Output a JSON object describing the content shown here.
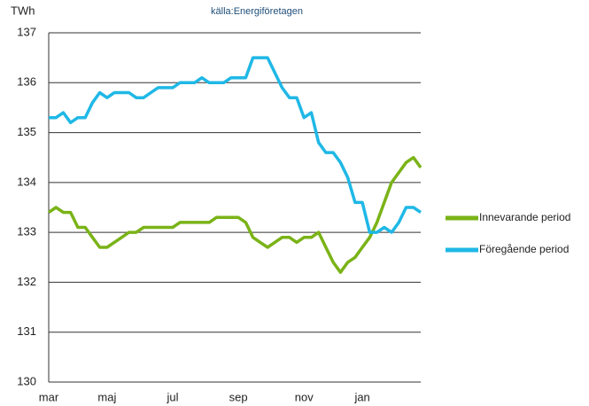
{
  "chart_data": {
    "type": "line",
    "title": "källa:Energiföretagen",
    "y_label": "TWh",
    "categories": [
      "mar",
      null,
      null,
      null,
      null,
      null,
      null,
      null,
      "maj",
      null,
      null,
      null,
      null,
      null,
      null,
      null,
      null,
      "jul",
      null,
      null,
      null,
      null,
      null,
      null,
      null,
      null,
      "sep",
      null,
      null,
      null,
      null,
      null,
      null,
      null,
      null,
      "nov",
      null,
      null,
      null,
      null,
      null,
      null,
      null,
      "jan",
      null,
      null,
      null,
      null,
      null,
      null,
      null,
      null
    ],
    "series": [
      {
        "name": "Innevarande period",
        "color": "#7ab317",
        "values": [
          133.4,
          133.5,
          133.4,
          133.4,
          133.1,
          133.1,
          132.9,
          132.7,
          132.7,
          132.8,
          132.9,
          133.0,
          133.0,
          133.1,
          133.1,
          133.1,
          133.1,
          133.1,
          133.2,
          133.2,
          133.2,
          133.2,
          133.2,
          133.3,
          133.3,
          133.3,
          133.3,
          133.2,
          132.9,
          132.8,
          132.7,
          132.8,
          132.9,
          132.9,
          132.8,
          132.9,
          132.9,
          133.0,
          132.7,
          132.4,
          132.2,
          132.4,
          132.5,
          132.7,
          132.9,
          133.2,
          133.6,
          134.0,
          134.2,
          134.4,
          134.5,
          134.3
        ]
      },
      {
        "name": "Föregående period",
        "color": "#1fb8e6",
        "values": [
          135.3,
          135.3,
          135.4,
          135.2,
          135.3,
          135.3,
          135.6,
          135.8,
          135.7,
          135.8,
          135.8,
          135.8,
          135.7,
          135.7,
          135.8,
          135.9,
          135.9,
          135.9,
          136.0,
          136.0,
          136.0,
          136.1,
          136.0,
          136.0,
          136.0,
          136.1,
          136.1,
          136.1,
          136.5,
          136.5,
          136.5,
          136.2,
          135.9,
          135.7,
          135.7,
          135.3,
          135.4,
          134.8,
          134.6,
          134.6,
          134.4,
          134.1,
          133.6,
          133.6,
          133.0,
          133.0,
          133.1,
          133.0,
          133.2,
          133.5,
          133.5,
          133.4
        ]
      }
    ],
    "ylim": [
      130,
      137
    ],
    "yticks": [
      130,
      131,
      132,
      133,
      134,
      135,
      136,
      137
    ],
    "grid": true,
    "legend": "right"
  }
}
